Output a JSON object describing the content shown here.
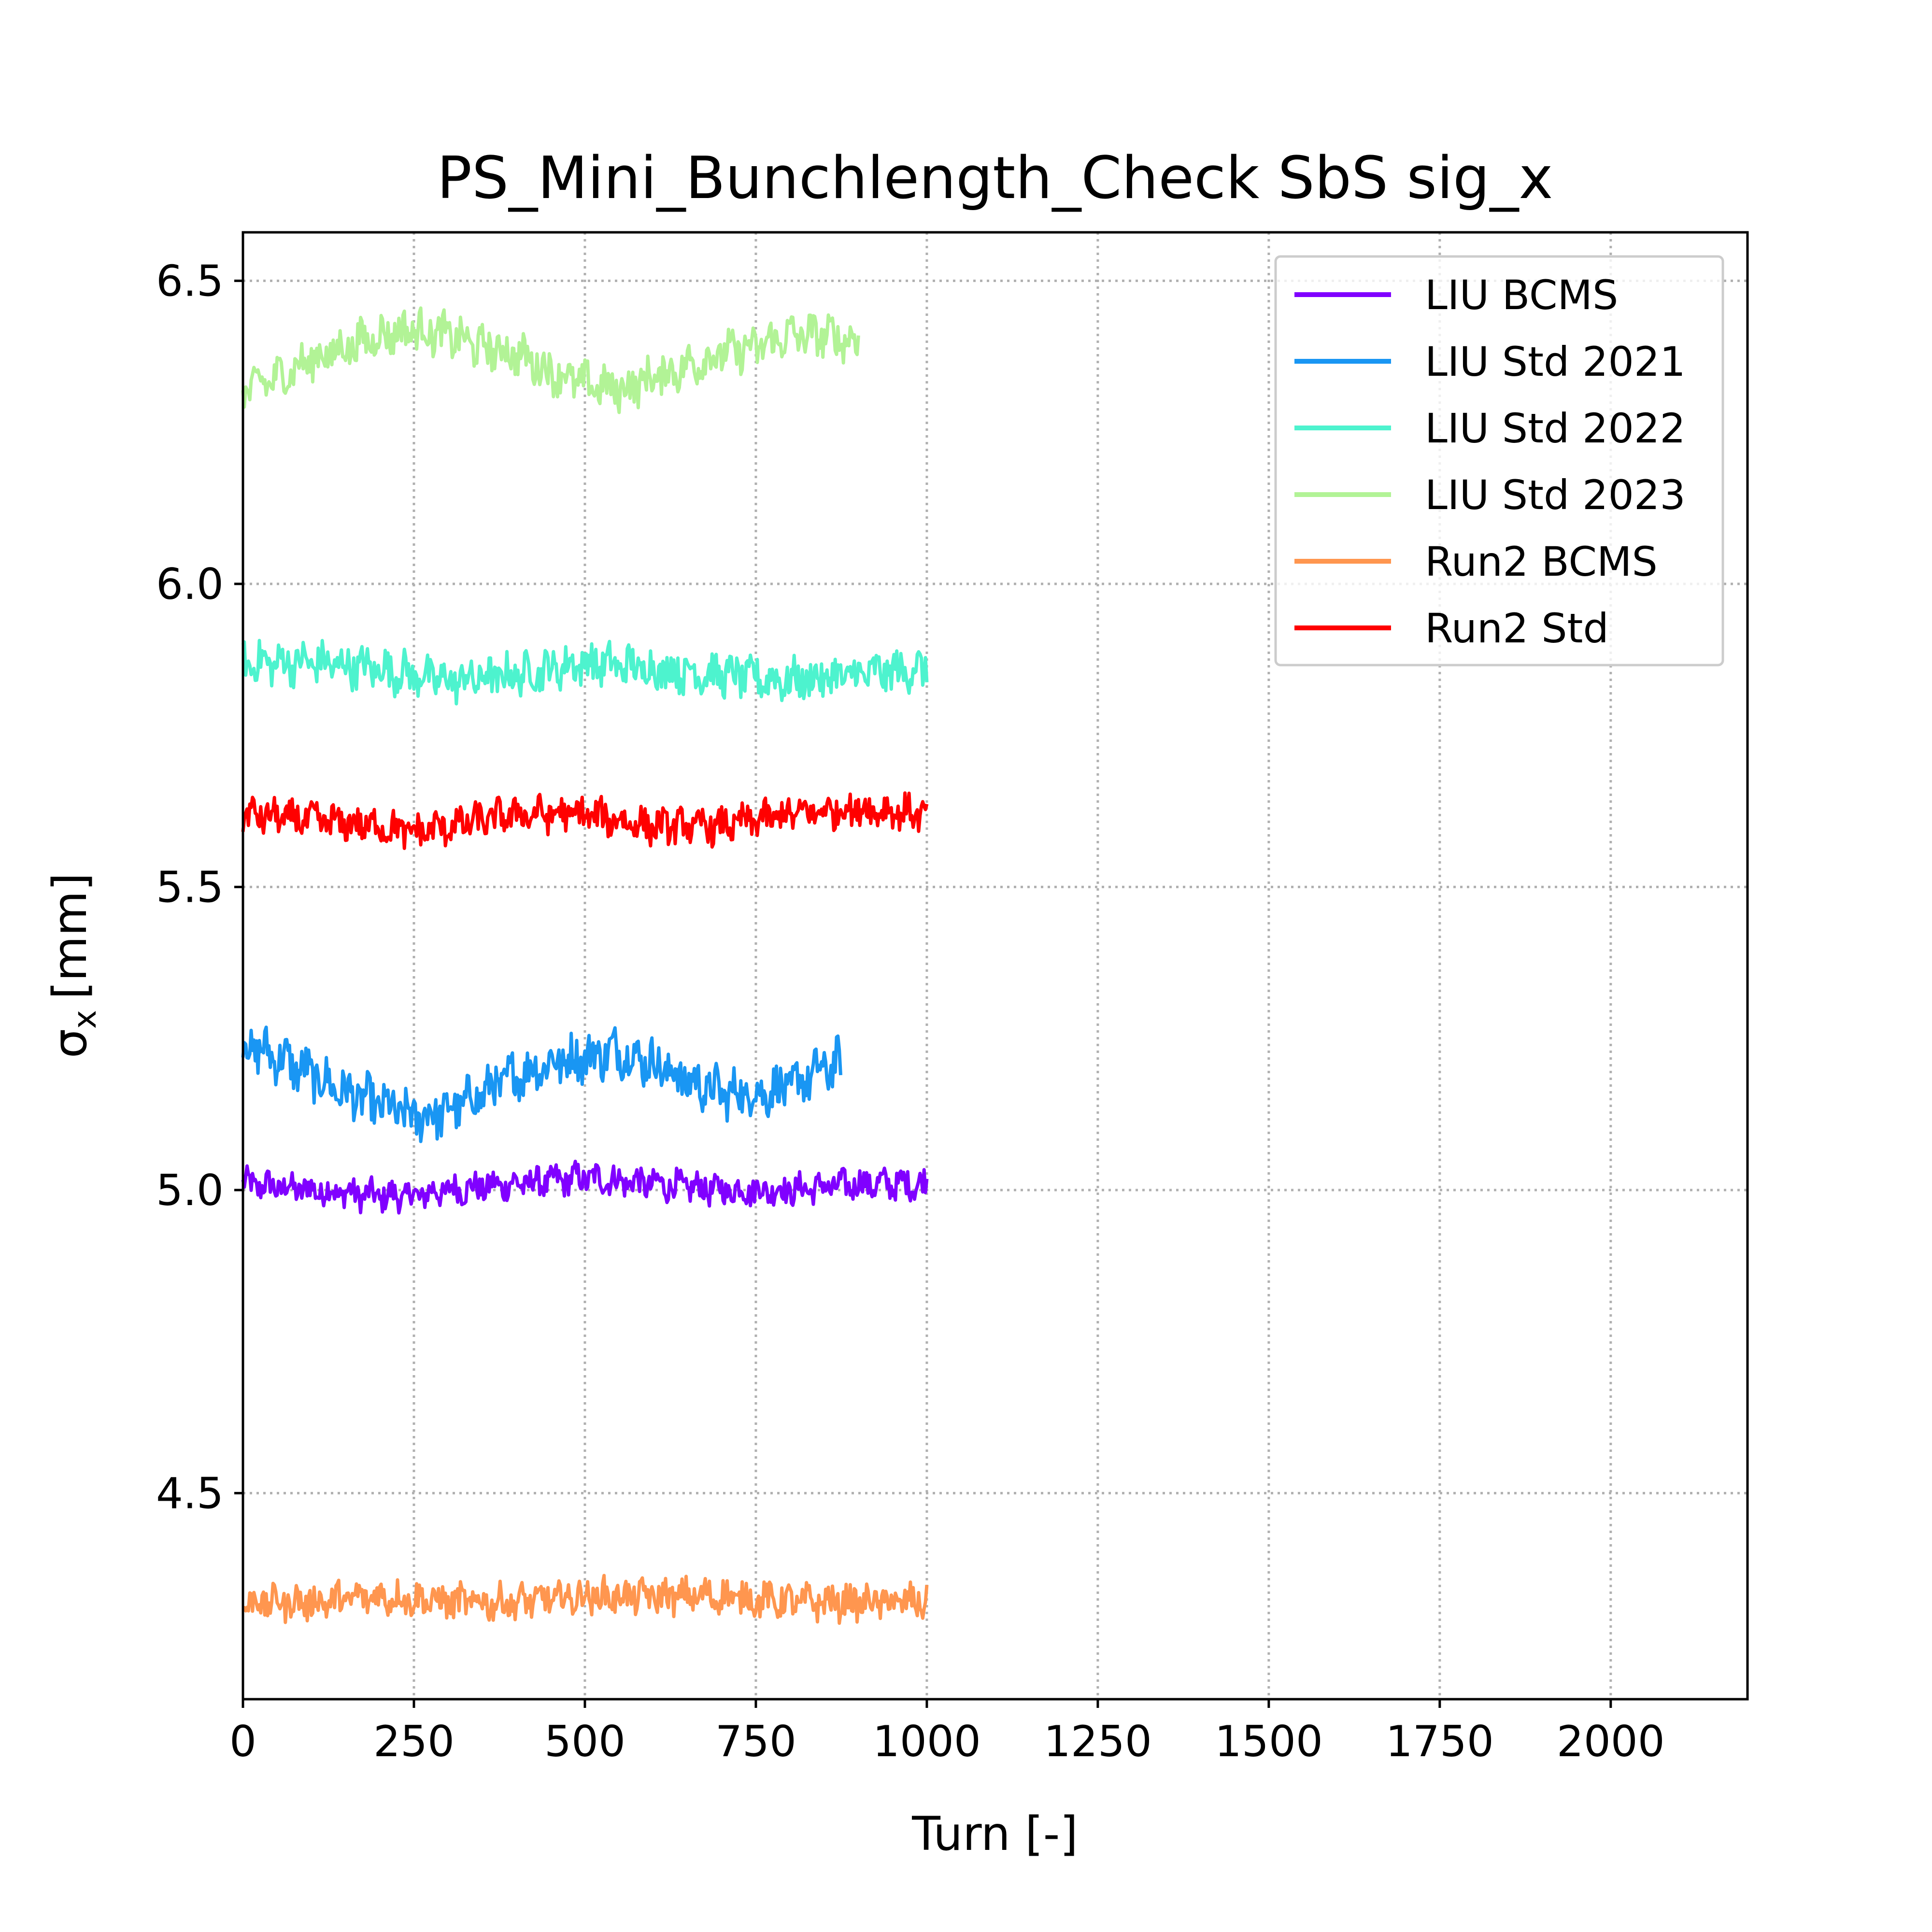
{
  "chart_data": {
    "type": "line",
    "title": "PS_Mini_Bunchlength_Check SbS sig_x",
    "xlabel": "Turn [-]",
    "ylabel_symbol": "σ",
    "ylabel_subscript": "x",
    "ylabel_unit": "[mm]",
    "xlim": [
      0,
      2200
    ],
    "ylim": [
      4.16,
      6.58
    ],
    "xticks": [
      0,
      250,
      500,
      750,
      1000,
      1250,
      1500,
      1750,
      2000
    ],
    "xtick_labels": [
      "0",
      "250",
      "500",
      "750",
      "1000",
      "1250",
      "1500",
      "1750",
      "2000"
    ],
    "yticks": [
      4.5,
      5.0,
      5.5,
      6.0,
      6.5
    ],
    "ytick_labels": [
      "4.5",
      "5.0",
      "5.5",
      "6.0",
      "6.5"
    ],
    "grid": true,
    "legend_position": "top-right",
    "series": [
      {
        "name": "LIU BCMS",
        "color": "#8000ff",
        "noise": 0.022,
        "x": [
          0,
          100,
          200,
          250,
          300,
          400,
          500,
          600,
          700,
          750,
          800,
          900,
          1000
        ],
        "y": [
          5.01,
          5.0,
          4.99,
          4.99,
          5.0,
          5.01,
          5.02,
          5.01,
          5.0,
          5.0,
          5.0,
          5.01,
          5.01
        ]
      },
      {
        "name": "LIU Std 2021",
        "color": "#1996f3",
        "noise": 0.035,
        "x": [
          0,
          50,
          100,
          150,
          200,
          250,
          300,
          350,
          400,
          450,
          500,
          550,
          600,
          650,
          700,
          750,
          800,
          850,
          875
        ],
        "y": [
          5.24,
          5.22,
          5.19,
          5.16,
          5.14,
          5.12,
          5.13,
          5.16,
          5.19,
          5.21,
          5.22,
          5.23,
          5.21,
          5.18,
          5.16,
          5.16,
          5.17,
          5.2,
          5.21
        ]
      },
      {
        "name": "LIU Std 2022",
        "color": "#4df3ce",
        "noise": 0.03,
        "x": [
          0,
          100,
          200,
          300,
          400,
          500,
          600,
          700,
          800,
          900,
          1000
        ],
        "y": [
          5.87,
          5.87,
          5.86,
          5.84,
          5.85,
          5.87,
          5.86,
          5.85,
          5.84,
          5.85,
          5.86
        ]
      },
      {
        "name": "LIU Std 2023",
        "color": "#b2f396",
        "noise": 0.03,
        "x": [
          0,
          50,
          100,
          150,
          200,
          250,
          300,
          350,
          400,
          450,
          500,
          550,
          600,
          650,
          700,
          750,
          800,
          850,
          900
        ],
        "y": [
          6.32,
          6.34,
          6.37,
          6.39,
          6.41,
          6.42,
          6.41,
          6.39,
          6.38,
          6.35,
          6.33,
          6.32,
          6.34,
          6.36,
          6.38,
          6.39,
          6.41,
          6.41,
          6.4
        ]
      },
      {
        "name": "Run2 BCMS",
        "color": "#ff964f",
        "noise": 0.025,
        "x": [
          0,
          100,
          200,
          300,
          400,
          500,
          600,
          700,
          800,
          900,
          1000
        ],
        "y": [
          4.32,
          4.32,
          4.33,
          4.32,
          4.32,
          4.33,
          4.33,
          4.33,
          4.32,
          4.32,
          4.32
        ]
      },
      {
        "name": "Run2 Std",
        "color": "#ff0000",
        "noise": 0.025,
        "x": [
          0,
          100,
          200,
          250,
          300,
          400,
          500,
          600,
          700,
          800,
          900,
          1000
        ],
        "y": [
          5.62,
          5.61,
          5.6,
          5.59,
          5.6,
          5.62,
          5.62,
          5.6,
          5.6,
          5.62,
          5.63,
          5.62
        ]
      }
    ]
  }
}
